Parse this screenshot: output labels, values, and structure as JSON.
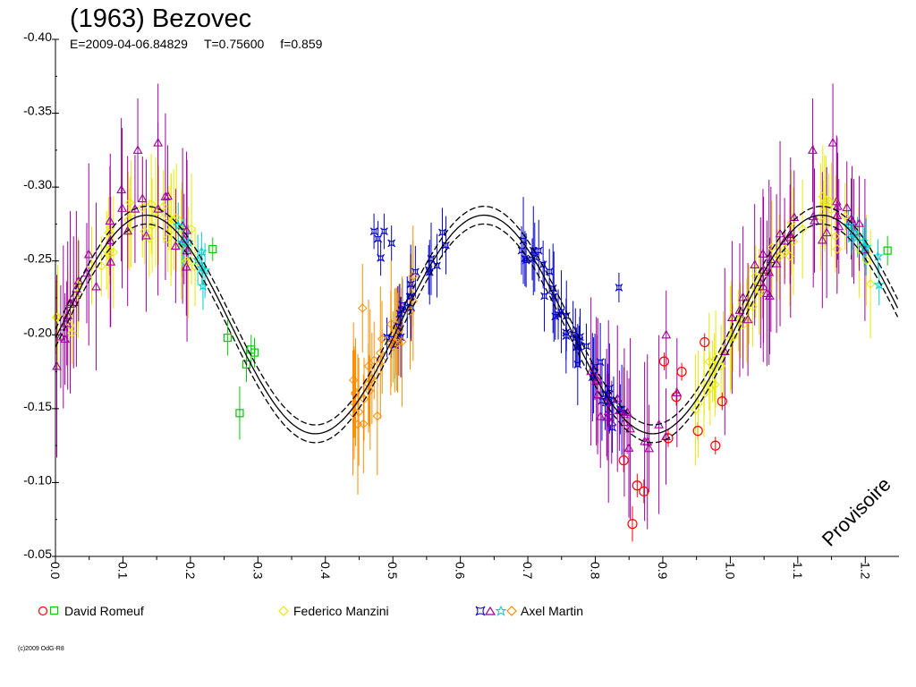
{
  "title": "(1963) Bezovec",
  "subtitle": {
    "epoch": "E=2009-04-06.84829",
    "period": "T=0.75600",
    "f": "f=0.859"
  },
  "watermark": "Provisoire",
  "copyright": "(c)2009 OdG-R8",
  "chart_data": {
    "type": "scatter",
    "title": "(1963) Bezovec",
    "xlabel": "",
    "ylabel": "",
    "xlim": [
      0.0,
      1.25
    ],
    "ylim": [
      -0.05,
      -0.4
    ],
    "x_ticks": [
      0.0,
      0.1,
      0.2,
      0.3,
      0.4,
      0.5,
      0.6,
      0.7,
      0.8,
      0.9,
      1.0,
      1.1,
      1.2
    ],
    "x_tick_labels": [
      "0.0",
      "0.1",
      "0.2",
      "0.3",
      "0.4",
      "0.5",
      "0.6",
      "0.7",
      "0.8",
      "0.9",
      "1.0",
      "1.1",
      "1.2"
    ],
    "y_ticks": [
      -0.4,
      -0.35,
      -0.3,
      -0.25,
      -0.2,
      -0.15,
      -0.1,
      -0.05
    ],
    "y_tick_labels": [
      "-0.40",
      "-0.35",
      "-0.30",
      "-0.25",
      "-0.20",
      "-0.15",
      "-0.10",
      "-0.05"
    ],
    "model": {
      "mean": -0.207,
      "amplitude": 0.074,
      "peak_phase": 0.635,
      "envelope": 0.006,
      "description": "fitted light curve with dashed uncertainty envelope"
    },
    "legend": [
      {
        "label": "David Romeuf",
        "symbols": [
          [
            "circle",
            "#ff0000"
          ],
          [
            "square",
            "#00cc00"
          ]
        ]
      },
      {
        "label": "Federico Manzini",
        "symbols": [
          [
            "diamond",
            "#e8e800"
          ]
        ]
      },
      {
        "label": "Axel Martin",
        "symbols": [
          [
            "star4",
            "#0000cc"
          ],
          [
            "triangle",
            "#a000a0"
          ],
          [
            "star5",
            "#00cccc"
          ],
          [
            "diamond",
            "#ff8c00"
          ]
        ]
      }
    ],
    "series": [
      {
        "name": "David Romeuf (red)",
        "marker": "circle",
        "color": "#ff0000",
        "points": [
          [
            0.842,
            -0.115,
            0.008
          ],
          [
            0.855,
            -0.072,
            0.012
          ],
          [
            0.862,
            -0.098,
            0.008
          ],
          [
            0.872,
            -0.094,
            0.008
          ],
          [
            0.902,
            -0.182,
            0.006
          ],
          [
            0.92,
            -0.158,
            0.006
          ],
          [
            0.928,
            -0.175,
            0.006
          ],
          [
            0.908,
            -0.13,
            0.006
          ],
          [
            0.952,
            -0.135,
            0.006
          ],
          [
            0.962,
            -0.195,
            0.006
          ],
          [
            0.978,
            -0.125,
            0.006
          ],
          [
            0.988,
            -0.155,
            0.006
          ]
        ]
      },
      {
        "name": "David Romeuf (green)",
        "marker": "square",
        "color": "#00cc00",
        "points": [
          [
            0.233,
            -0.258,
            0.008
          ],
          [
            0.255,
            -0.198,
            0.012
          ],
          [
            0.273,
            -0.147,
            0.018
          ],
          [
            0.283,
            -0.18,
            0.012
          ],
          [
            0.29,
            -0.19,
            0.01
          ],
          [
            0.295,
            -0.188,
            0.01
          ],
          [
            1.233,
            -0.257,
            0.01
          ]
        ]
      },
      {
        "name": "Federico Manzini",
        "marker": "diamond",
        "color": "#e8e800",
        "generator": {
          "ranges": [
            [
              0.0,
              0.21
            ],
            [
              0.945,
              1.21
            ]
          ],
          "count": 90,
          "error": 0.028,
          "scatter": 0.015
        }
      },
      {
        "name": "Axel Martin (blue)",
        "marker": "star4",
        "color": "#0000cc",
        "generator": {
          "ranges": [
            [
              0.49,
              0.58
            ],
            [
              0.69,
              0.86
            ]
          ],
          "count": 62,
          "error": 0.022,
          "scatter": 0.012
        },
        "points": [
          [
            0.472,
            -0.27,
            0.012
          ],
          [
            0.478,
            -0.265,
            0.012
          ],
          [
            0.482,
            -0.252,
            0.012
          ],
          [
            0.487,
            -0.27,
            0.012
          ],
          [
            0.498,
            -0.262,
            0.012
          ],
          [
            0.835,
            -0.232,
            0.01
          ]
        ]
      },
      {
        "name": "Axel Martin (purple)",
        "marker": "triangle",
        "color": "#a000a0",
        "generator": {
          "ranges": [
            [
              0.0,
              0.2
            ],
            [
              0.79,
              0.93
            ],
            [
              0.99,
              1.2
            ]
          ],
          "count": 88,
          "error": 0.045,
          "scatter": 0.018
        },
        "points": [
          [
            0.152,
            -0.33,
            0.04
          ],
          [
            0.122,
            -0.325,
            0.035
          ],
          [
            1.152,
            -0.33,
            0.04
          ],
          [
            1.122,
            -0.325,
            0.035
          ],
          [
            0.905,
            -0.2,
            0.03
          ]
        ]
      },
      {
        "name": "Axel Martin (cyan)",
        "marker": "star5",
        "color": "#00cccc",
        "generator": {
          "ranges": [
            [
              0.17,
              0.225
            ],
            [
              1.17,
              1.225
            ]
          ],
          "count": 18,
          "error": 0.015,
          "scatter": 0.008
        }
      },
      {
        "name": "Axel Martin (orange)",
        "marker": "diamond",
        "color": "#ff8c00",
        "generator": {
          "ranges": [
            [
              0.44,
              0.53
            ]
          ],
          "count": 30,
          "error": 0.035,
          "scatter": 0.018
        },
        "points": [
          [
            0.477,
            -0.145,
            0.04
          ],
          [
            0.455,
            -0.218,
            0.03
          ]
        ]
      }
    ]
  }
}
